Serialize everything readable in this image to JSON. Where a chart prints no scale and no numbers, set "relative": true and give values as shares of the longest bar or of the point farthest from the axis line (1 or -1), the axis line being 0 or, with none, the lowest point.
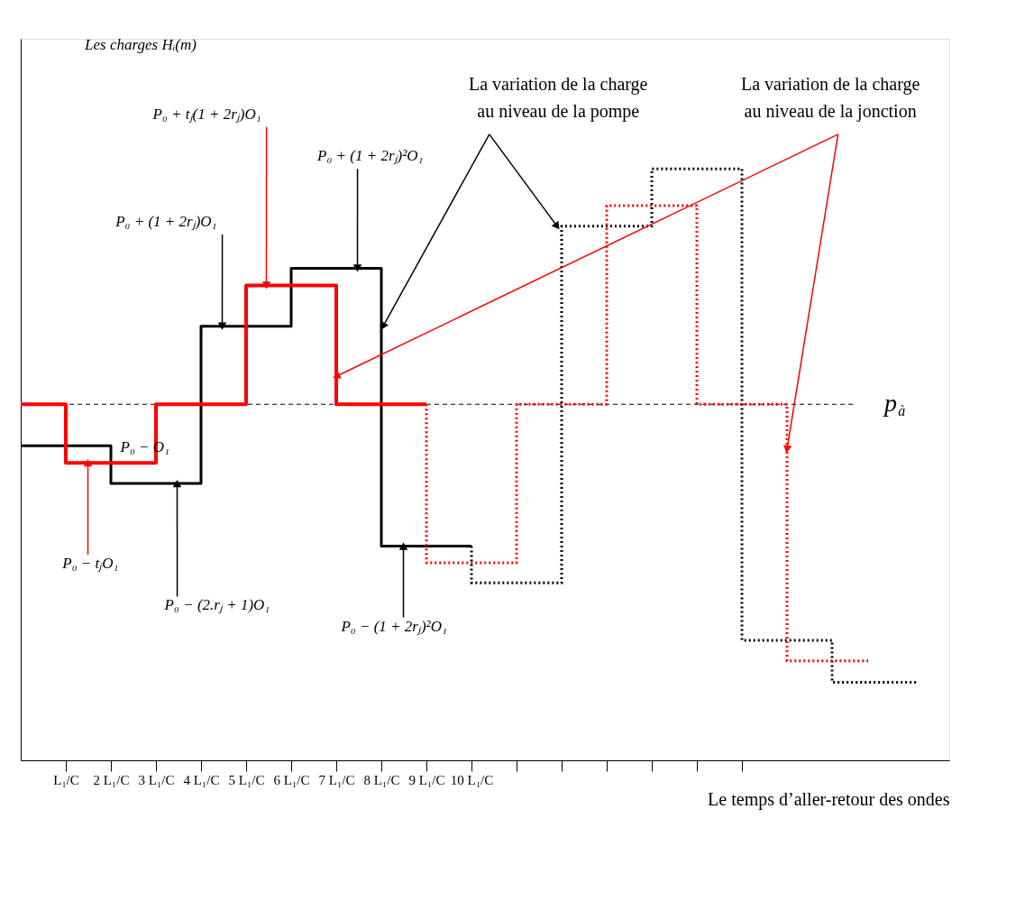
{
  "chart_data": {
    "type": "step",
    "relative": true,
    "xlabel": "Le temps d’aller-retour des ondes",
    "xlim": [
      0,
      20.6
    ],
    "xticks": [
      {
        "value": 1,
        "label": "L₁/C"
      },
      {
        "value": 2,
        "label": "2 L₁/C"
      },
      {
        "value": 3,
        "label": "3 L₁/C"
      },
      {
        "value": 4,
        "label": "4 L₁/C"
      },
      {
        "value": 5,
        "label": "5 L₁/C"
      },
      {
        "value": 6,
        "label": "6 L₁/C"
      },
      {
        "value": 7,
        "label": "7 L₁/C"
      },
      {
        "value": 8,
        "label": "8 L₁/C"
      },
      {
        "value": 9,
        "label": "9 L₁/C"
      },
      {
        "value": 10,
        "label": "10 L₁/C"
      },
      {
        "value": 11,
        "label": null
      },
      {
        "value": 12,
        "label": null
      },
      {
        "value": 13,
        "label": null
      },
      {
        "value": 14,
        "label": null
      },
      {
        "value": 15,
        "label": null
      },
      {
        "value": 16,
        "label": null
      }
    ],
    "series": [
      {
        "color": "#000000",
        "line_style": "solid",
        "x": [
          0,
          2,
          4,
          6,
          8,
          10
        ],
        "values": [
          0.532,
          0.468,
          0.734,
          0.832,
          0.362,
          0.362
        ]
      },
      {
        "color": "#000000",
        "line_style": "dotted",
        "x": [
          10,
          10,
          12,
          14,
          16,
          18,
          19.9
        ],
        "values": [
          0.362,
          0.3,
          0.903,
          1.0,
          0.203,
          0.132,
          0.132
        ]
      },
      {
        "color": "#ff0000",
        "line_style": "solid",
        "x": [
          0,
          1,
          3,
          5,
          7,
          9
        ],
        "values": [
          0.602,
          0.503,
          0.602,
          0.803,
          0.602,
          0.602
        ]
      },
      {
        "color": "#ff0000",
        "line_style": "dotted",
        "x": [
          9,
          9,
          11,
          13,
          15,
          17,
          18.8
        ],
        "values": [
          0.602,
          0.334,
          0.602,
          0.938,
          0.602,
          0.168,
          0.168
        ]
      }
    ],
    "ref_lines": [
      {
        "axis": "y",
        "value": 0.602,
        "label": "p$_{à}$",
        "color": "#000000",
        "line_style": "dashed"
      }
    ],
    "annotations": [
      {
        "text": "P₀ + tⱼ(1 + 2rⱼ)O₁",
        "x": 5.45,
        "y": 0.803
      },
      {
        "text": "P₀ + (1 + 2rⱼ)²O₁",
        "x": 7.47,
        "y": 0.832
      },
      {
        "text": "P₀ + (1 + 2rⱼ)O₁",
        "x": 4.47,
        "y": 0.734
      },
      "P₀ − O₁",
      {
        "text": "P₀ − tⱼO₁",
        "x": 1.49,
        "y": 0.503
      },
      {
        "text": "P₀ − (2.rⱼ + 1)O₁",
        "x": 3.47,
        "y": 0.468
      },
      {
        "text": "P₀ − (1 + 2rⱼ)²O₁",
        "x": 8.49,
        "y": 0.362
      },
      {
        "text": "La variation de la charge\nau niveau de la pompe",
        "x": 11.9,
        "y": 0.903
      },
      {
        "text": "La variation de la charge\nau niveau de la jonction",
        "x": 17.0,
        "y": 0.526
      },
      "Les charges Hᵢ(m)"
    ],
    "grid": false
  }
}
